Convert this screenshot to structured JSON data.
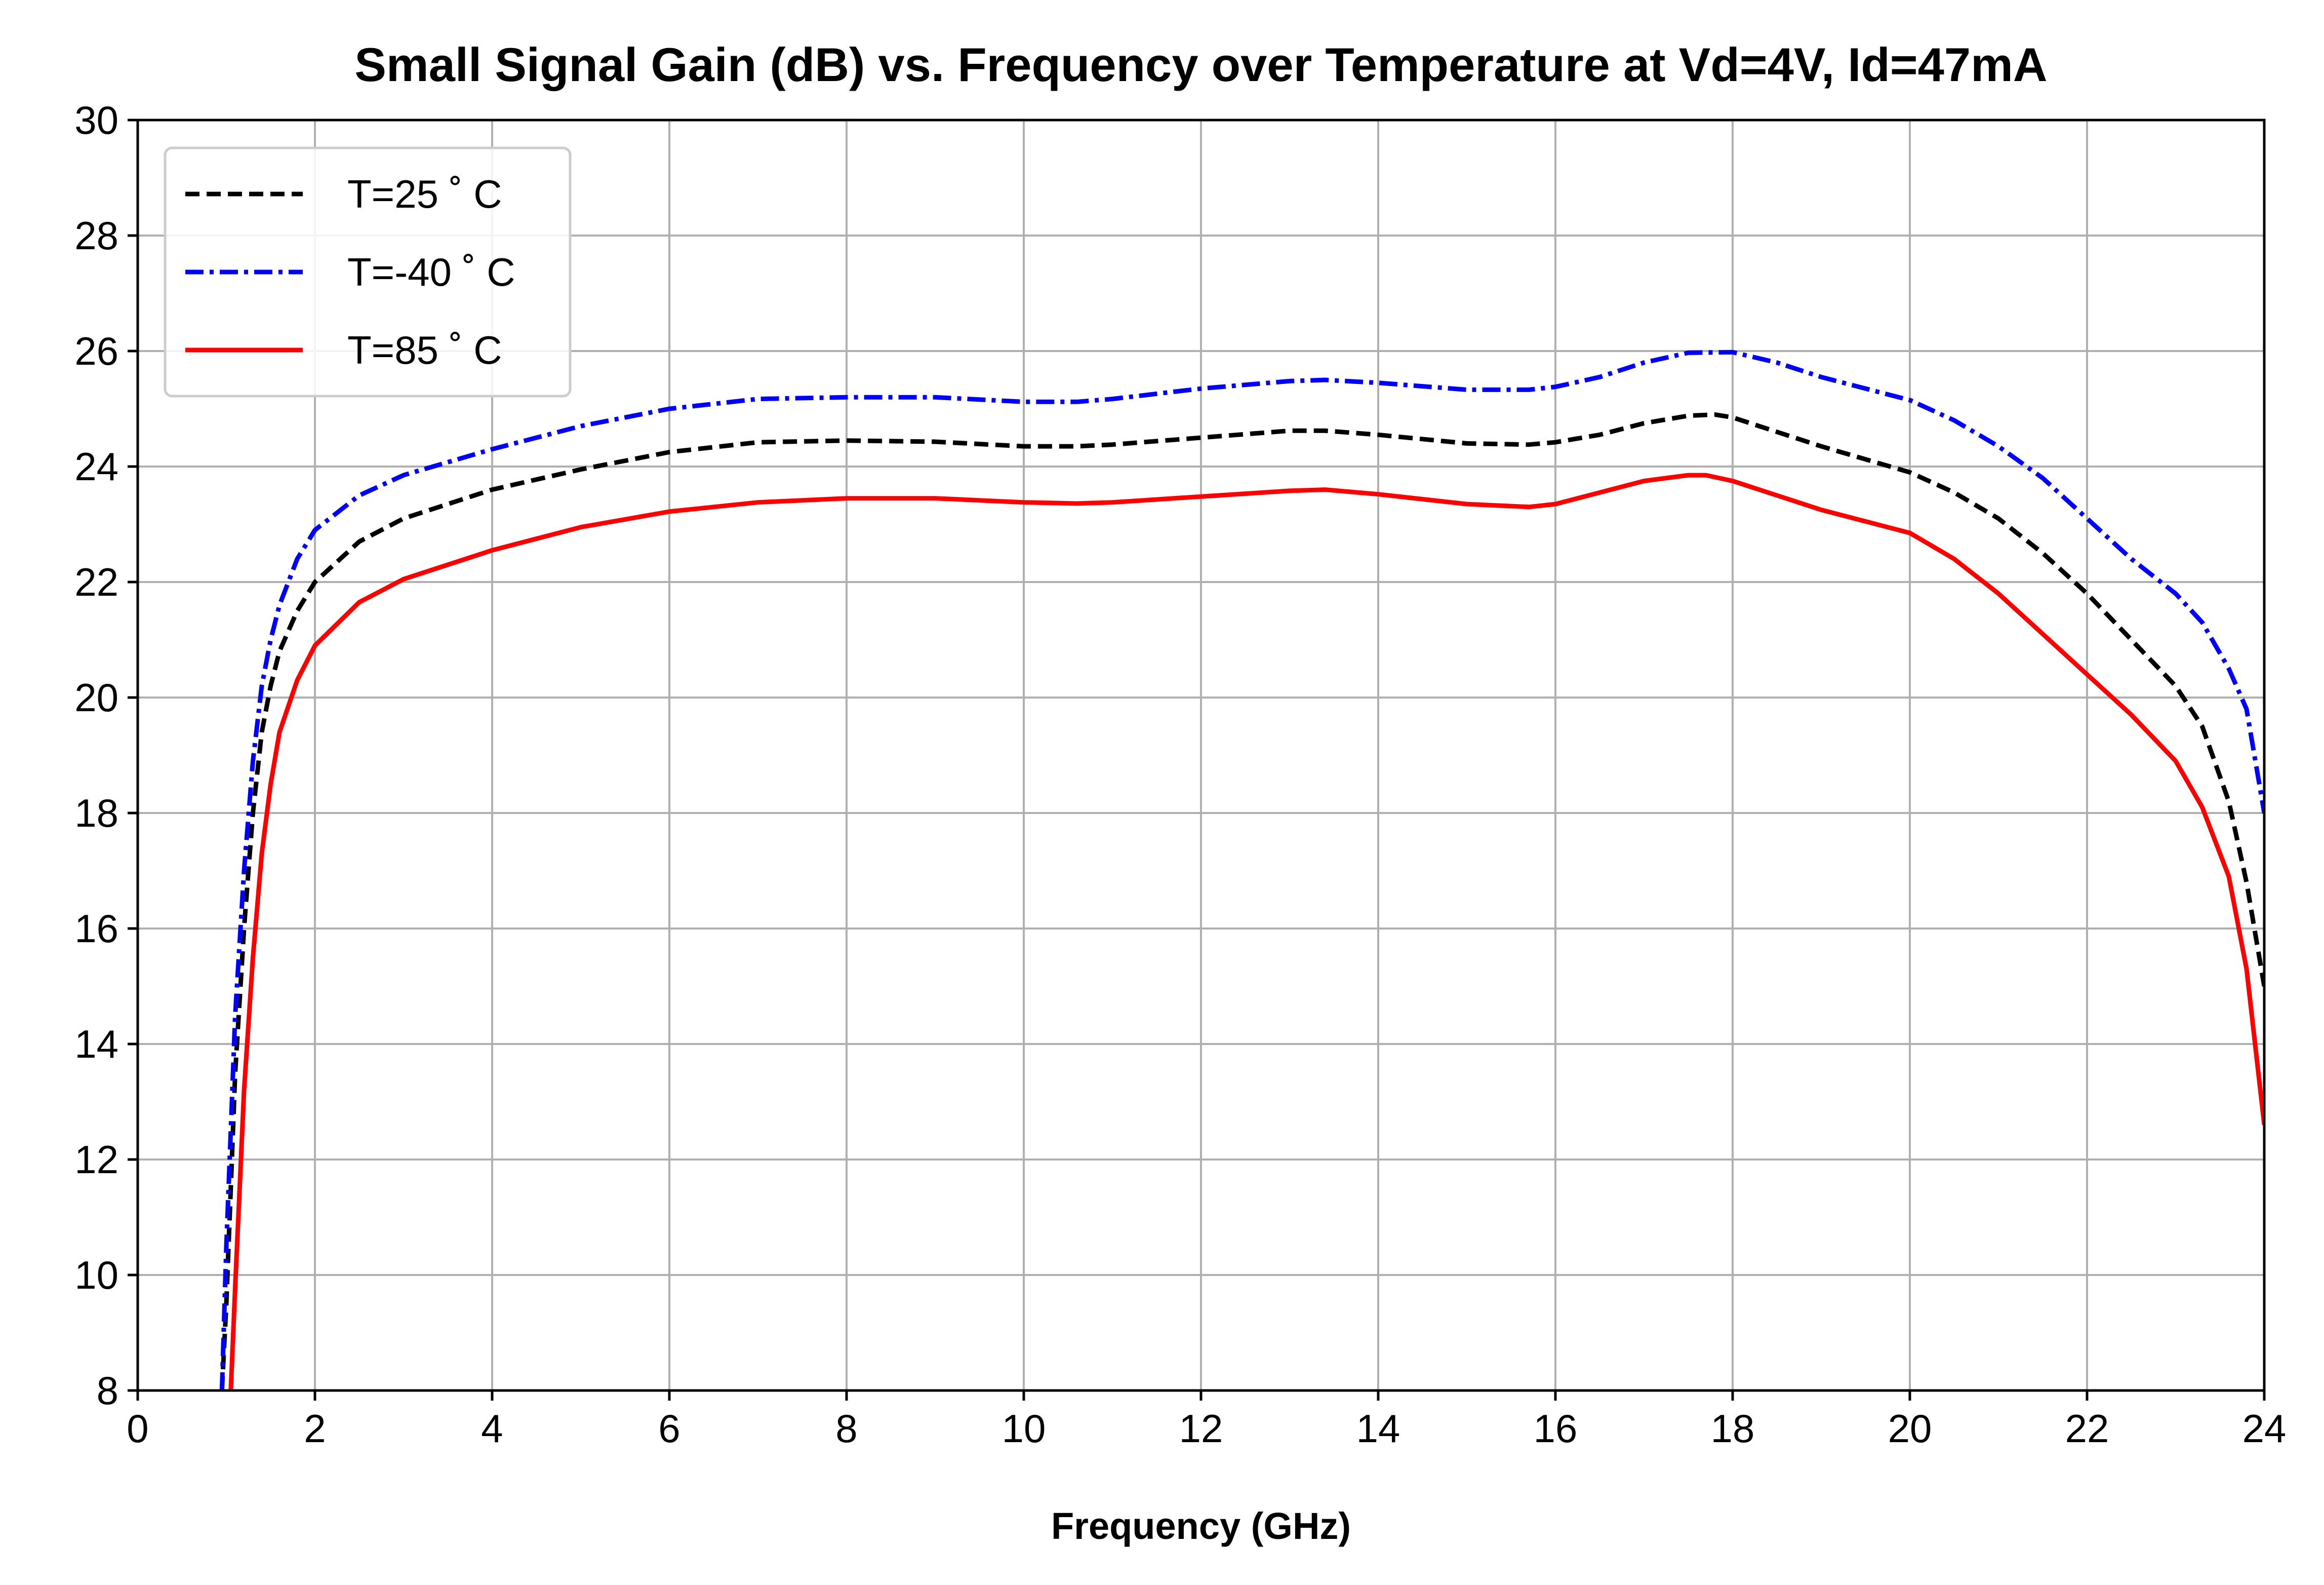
{
  "chart_data": {
    "type": "line",
    "title": "Small Signal Gain (dB) vs. Frequency over Temperature at Vd=4V, Id=47mA",
    "xlabel": "Frequency (GHz)",
    "ylabel": "",
    "xlim": [
      0,
      24
    ],
    "ylim": [
      8,
      30
    ],
    "xticks": [
      0,
      2,
      4,
      6,
      8,
      10,
      12,
      14,
      16,
      18,
      20,
      22,
      24
    ],
    "yticks": [
      8,
      10,
      12,
      14,
      16,
      18,
      20,
      22,
      24,
      26,
      28,
      30
    ],
    "grid": true,
    "legend_position": "top-left",
    "series": [
      {
        "name": "T=25 ˚ C",
        "color": "#000000",
        "line_style": "dashed",
        "x": [
          0.95,
          1.0,
          1.05,
          1.1,
          1.2,
          1.3,
          1.4,
          1.5,
          1.6,
          1.8,
          2.0,
          2.5,
          3.0,
          4.0,
          5.0,
          6.0,
          7.0,
          8.0,
          9.0,
          10.0,
          10.6,
          11.0,
          12.0,
          13.0,
          13.4,
          14.0,
          15.0,
          15.7,
          16.0,
          16.5,
          17.0,
          17.5,
          17.8,
          18.0,
          18.5,
          19.0,
          20.0,
          20.5,
          21.0,
          21.5,
          22.0,
          22.5,
          23.0,
          23.3,
          23.6,
          23.8,
          24.0
        ],
        "y": [
          8.0,
          9.5,
          11.5,
          13.5,
          16.0,
          18.0,
          19.4,
          20.2,
          20.8,
          21.5,
          22.0,
          22.7,
          23.1,
          23.6,
          23.95,
          24.25,
          24.42,
          24.45,
          24.43,
          24.35,
          24.35,
          24.38,
          24.5,
          24.62,
          24.62,
          24.55,
          24.4,
          24.38,
          24.42,
          24.55,
          24.75,
          24.88,
          24.9,
          24.85,
          24.6,
          24.35,
          23.9,
          23.55,
          23.1,
          22.5,
          21.8,
          21.0,
          20.2,
          19.5,
          18.2,
          16.8,
          15.0
        ]
      },
      {
        "name": "T=-40 ˚ C",
        "color": "#0000ff",
        "line_style": "dashdot",
        "x": [
          0.95,
          1.0,
          1.05,
          1.1,
          1.2,
          1.3,
          1.4,
          1.5,
          1.6,
          1.8,
          2.0,
          2.5,
          3.0,
          4.0,
          5.0,
          6.0,
          7.0,
          8.0,
          9.0,
          10.0,
          10.6,
          11.0,
          12.0,
          13.0,
          13.4,
          14.0,
          15.0,
          15.7,
          16.0,
          16.5,
          17.0,
          17.5,
          18.0,
          18.5,
          19.0,
          20.0,
          20.5,
          21.0,
          21.5,
          22.0,
          22.5,
          23.0,
          23.3,
          23.6,
          23.8,
          24.0
        ],
        "y": [
          8.0,
          10.5,
          12.5,
          14.5,
          17.0,
          18.9,
          20.2,
          21.0,
          21.6,
          22.4,
          22.9,
          23.5,
          23.85,
          24.3,
          24.7,
          25.0,
          25.17,
          25.2,
          25.2,
          25.12,
          25.12,
          25.17,
          25.35,
          25.48,
          25.5,
          25.45,
          25.33,
          25.33,
          25.38,
          25.55,
          25.8,
          25.97,
          25.98,
          25.8,
          25.55,
          25.15,
          24.8,
          24.35,
          23.8,
          23.1,
          22.4,
          21.8,
          21.3,
          20.5,
          19.8,
          18.0
        ]
      },
      {
        "name": "T=85 ˚ C",
        "color": "#ff0000",
        "line_style": "solid",
        "x": [
          1.05,
          1.1,
          1.15,
          1.2,
          1.3,
          1.4,
          1.5,
          1.6,
          1.8,
          2.0,
          2.5,
          3.0,
          4.0,
          5.0,
          6.0,
          7.0,
          8.0,
          9.0,
          10.0,
          10.6,
          11.0,
          12.0,
          13.0,
          13.4,
          14.0,
          15.0,
          15.7,
          16.0,
          16.5,
          17.0,
          17.5,
          17.7,
          18.0,
          18.5,
          19.0,
          20.0,
          20.5,
          21.0,
          21.5,
          22.0,
          22.5,
          23.0,
          23.3,
          23.6,
          23.8,
          24.0
        ],
        "y": [
          8.0,
          9.8,
          11.5,
          13.2,
          15.5,
          17.3,
          18.5,
          19.4,
          20.3,
          20.9,
          21.65,
          22.05,
          22.55,
          22.95,
          23.22,
          23.38,
          23.45,
          23.45,
          23.38,
          23.36,
          23.38,
          23.48,
          23.58,
          23.6,
          23.52,
          23.35,
          23.3,
          23.35,
          23.55,
          23.75,
          23.85,
          23.85,
          23.75,
          23.5,
          23.25,
          22.85,
          22.4,
          21.8,
          21.1,
          20.4,
          19.7,
          18.9,
          18.1,
          16.9,
          15.3,
          12.6
        ]
      }
    ]
  }
}
